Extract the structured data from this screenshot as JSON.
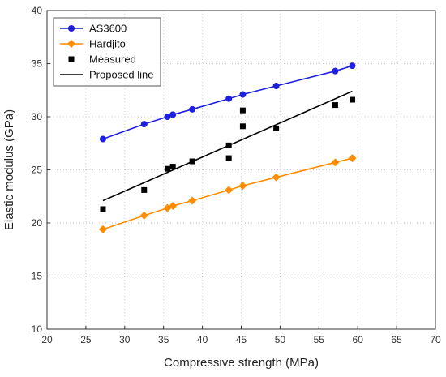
{
  "chart_data": {
    "type": "scatter",
    "xlabel": "Compressive strength (MPa)",
    "ylabel": "Elastic modulus (GPa)",
    "xlim": [
      20,
      70
    ],
    "ylim": [
      10,
      40
    ],
    "xticks": [
      20,
      25,
      30,
      35,
      40,
      45,
      50,
      55,
      60,
      65,
      70
    ],
    "yticks": [
      10,
      15,
      20,
      25,
      30,
      35,
      40
    ],
    "grid": "dotted",
    "legend_position": "top-left",
    "series": [
      {
        "name": "AS3600",
        "kind": "line-with-circles",
        "color": "#1f1fe0",
        "x": [
          27.2,
          32.5,
          35.5,
          36.2,
          38.7,
          43.4,
          45.2,
          49.5,
          57.1,
          59.3
        ],
        "y": [
          27.9,
          29.3,
          30.0,
          30.2,
          30.7,
          31.7,
          32.1,
          32.9,
          34.3,
          34.8
        ]
      },
      {
        "name": "Hardjito",
        "kind": "line-with-diamonds",
        "color": "#ff8c00",
        "x": [
          27.2,
          32.5,
          35.5,
          36.2,
          38.7,
          43.4,
          45.2,
          49.5,
          57.1,
          59.3
        ],
        "y": [
          19.4,
          20.7,
          21.4,
          21.6,
          22.1,
          23.1,
          23.5,
          24.3,
          25.7,
          26.1
        ]
      },
      {
        "name": "Measured",
        "kind": "squares",
        "color": "#000000",
        "x": [
          27.2,
          32.5,
          35.5,
          36.2,
          38.7,
          43.4,
          43.4,
          45.2,
          45.2,
          49.5,
          57.1,
          59.3
        ],
        "y": [
          21.3,
          23.1,
          25.1,
          25.3,
          25.8,
          26.1,
          27.3,
          29.1,
          30.6,
          28.9,
          31.1,
          31.6
        ]
      },
      {
        "name": "Proposed line",
        "kind": "line",
        "color": "#000000",
        "x": [
          27.2,
          59.3
        ],
        "y": [
          22.1,
          32.4
        ]
      }
    ]
  }
}
